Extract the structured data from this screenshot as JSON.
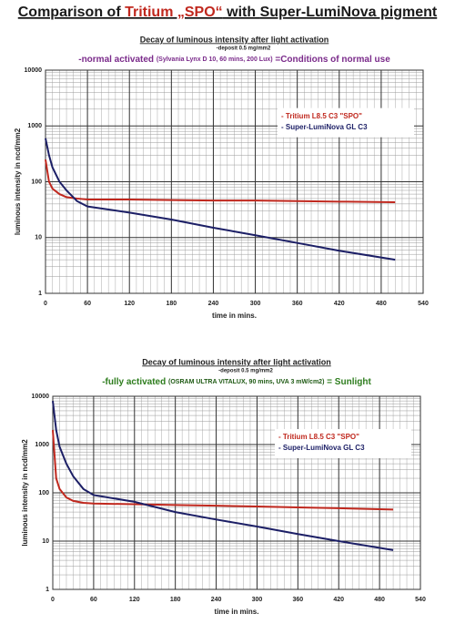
{
  "header": {
    "title": [
      {
        "text": "Comparison of ",
        "color": "#1a1a1a"
      },
      {
        "text": "Tritium „SPO“",
        "color": "#c0281e"
      },
      {
        "text": " with ",
        "color": "#1a1a1a"
      },
      {
        "text": "Super-LumiNova pigment",
        "color": "#1a1a1a"
      }
    ]
  },
  "chart_data": [
    {
      "type": "line",
      "title": "Decay of luminous intensity after light activation",
      "subtitle": "-deposit 0.5 mg/mm2",
      "condition": [
        {
          "text": "-normal activated ",
          "color": "#7a2a8a"
        },
        {
          "text": "(Sylvania Lynx D 10, 60 mins, 200 Lux)",
          "color": "#7a2a8a"
        },
        {
          "text": " =Conditions of normal use",
          "color": "#7a2a8a"
        }
      ],
      "x_label": "time in mins.",
      "y_label": "luminous intensity in ncd/mm2",
      "log_y": true,
      "grid": true,
      "legend": "upper right",
      "xlim": [
        0,
        540
      ],
      "xticks": [
        0,
        60,
        120,
        180,
        240,
        300,
        360,
        420,
        480,
        540
      ],
      "ylim": [
        1,
        10000
      ],
      "yticks": [
        1,
        10,
        100,
        1000,
        10000
      ],
      "x": [
        0,
        5,
        10,
        20,
        30,
        45,
        60,
        120,
        180,
        240,
        300,
        360,
        420,
        500
      ],
      "series": [
        {
          "name": "- Tritium L8.5 C3 \"SPO\"",
          "color": "#c0281e",
          "values": [
            250,
            100,
            75,
            60,
            53,
            50,
            48,
            48,
            47,
            46,
            46,
            45,
            44,
            43
          ]
        },
        {
          "name": "- Super-LumiNova GL C3",
          "color": "#1c1f66",
          "values": [
            600,
            300,
            180,
            100,
            70,
            45,
            36,
            28,
            21,
            15,
            11,
            8,
            5.8,
            4
          ]
        }
      ]
    },
    {
      "type": "line",
      "title": "Decay of luminous intensity after light activation",
      "subtitle": "-deposit 0.5 mg/mm2",
      "condition": [
        {
          "text": "-fully activated ",
          "color": "#2e7d1e"
        },
        {
          "text": "(OSRAM ULTRA VITALUX, 90 mins, UVA 3 mW/cm2)",
          "color": "#1f5a14"
        },
        {
          "text": " = Sunlight",
          "color": "#2e7d1e"
        }
      ],
      "x_label": "time in mins.",
      "y_label": "luminous intensity in ncd/mm2",
      "log_y": true,
      "grid": true,
      "legend": "upper right",
      "xlim": [
        0,
        540
      ],
      "xticks": [
        0,
        60,
        120,
        180,
        240,
        300,
        360,
        420,
        480,
        540
      ],
      "ylim": [
        1,
        10000
      ],
      "yticks": [
        1,
        10,
        100,
        1000,
        10000
      ],
      "x": [
        0,
        5,
        10,
        20,
        30,
        45,
        60,
        120,
        180,
        240,
        300,
        360,
        420,
        500
      ],
      "series": [
        {
          "name": "- Tritium L8.5 C3 \"SPO\"",
          "color": "#c0281e",
          "values": [
            2000,
            200,
            120,
            80,
            68,
            62,
            60,
            58,
            56,
            54,
            52,
            50,
            48,
            45
          ]
        },
        {
          "name": "- Super-LumiNova GL C3",
          "color": "#1c1f66",
          "values": [
            8000,
            2000,
            900,
            400,
            220,
            120,
            90,
            65,
            40,
            28,
            20,
            14,
            10,
            6.5
          ]
        }
      ]
    }
  ]
}
